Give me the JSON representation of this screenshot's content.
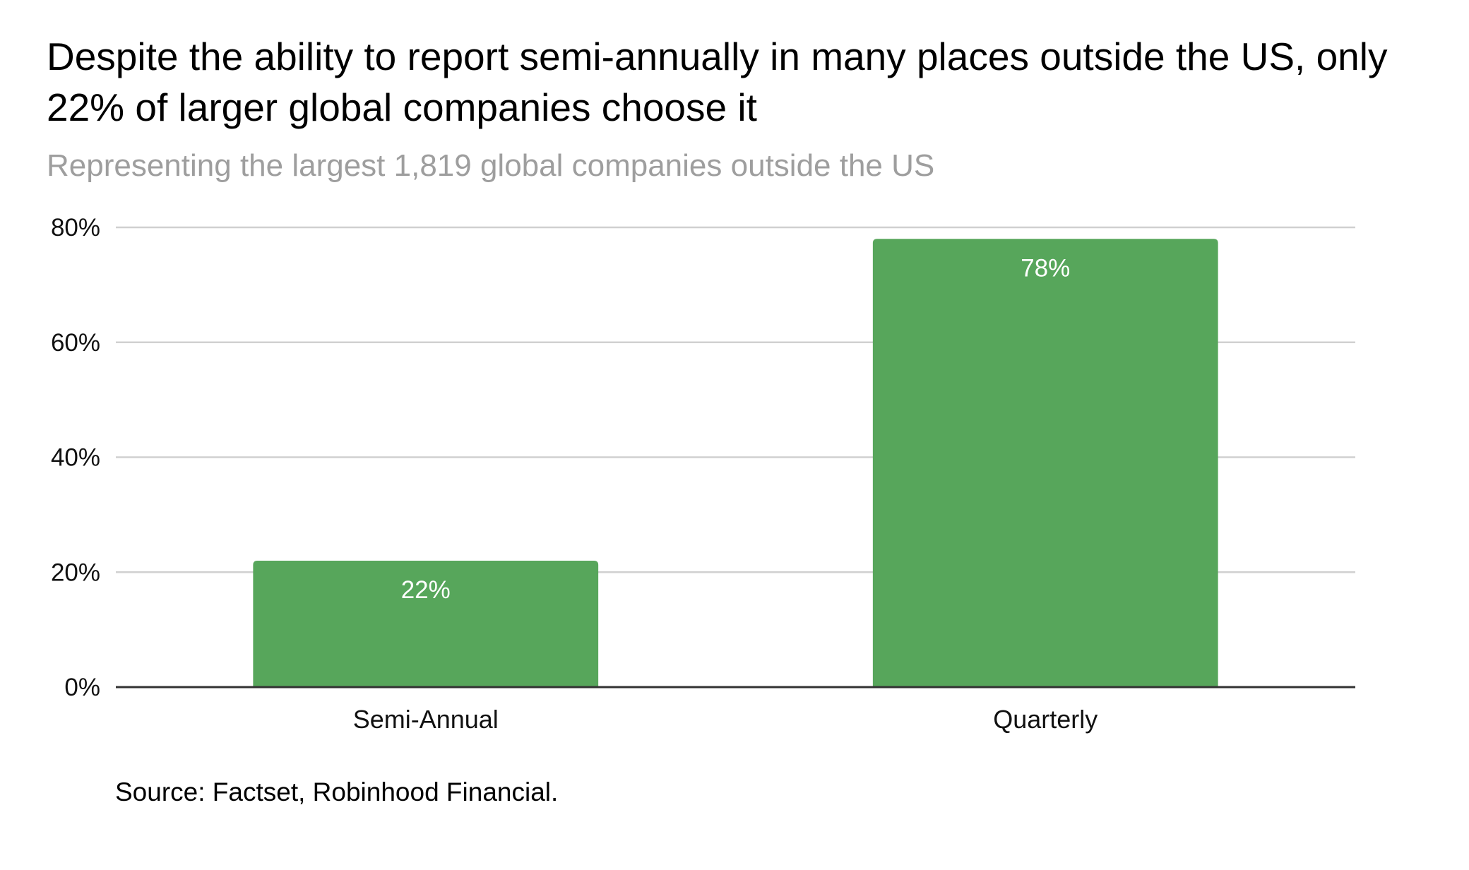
{
  "chart_data": {
    "type": "bar",
    "title": "Despite the ability to report semi-annually in many places outside the US, only 22% of larger global companies choose it",
    "subtitle": "Representing the largest 1,819 global companies outside the US",
    "categories": [
      "Semi-Annual",
      "Quarterly"
    ],
    "values": [
      22,
      78
    ],
    "data_labels": [
      "22%",
      "78%"
    ],
    "xlabel": "",
    "ylabel": "",
    "ylim": [
      0,
      80
    ],
    "yticks": [
      0,
      20,
      40,
      60,
      80
    ],
    "ytick_labels": [
      "0%",
      "20%",
      "40%",
      "60%",
      "80%"
    ],
    "value_unit": "%",
    "grid": true,
    "legend": "none",
    "bar_color": "#57a65b",
    "source": "Source: Factset, Robinhood Financial."
  }
}
